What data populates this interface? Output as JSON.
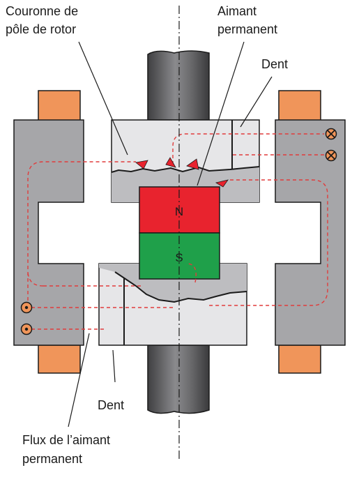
{
  "labels": {
    "rotor_crown": [
      "Couronne de",
      "pôle de rotor"
    ],
    "magnet": [
      "Aimant",
      "permanent"
    ],
    "tooth_top": "Dent",
    "tooth_bottom": "Dent",
    "flux": [
      "Flux de l’aimant",
      "permanent"
    ],
    "north": "N",
    "south": "S"
  },
  "colors": {
    "north": "#e8232e",
    "south": "#1fa04a",
    "coil": "#f0955a",
    "stator": "#a6a6a9",
    "pole": "#e6e6e8",
    "flux": "#e03c3c",
    "shaft": "#5a5a5c",
    "outline": "#1a1a1a"
  },
  "icons": {
    "current_in": "cross-circle-icon",
    "current_out": "dot-circle-icon"
  }
}
